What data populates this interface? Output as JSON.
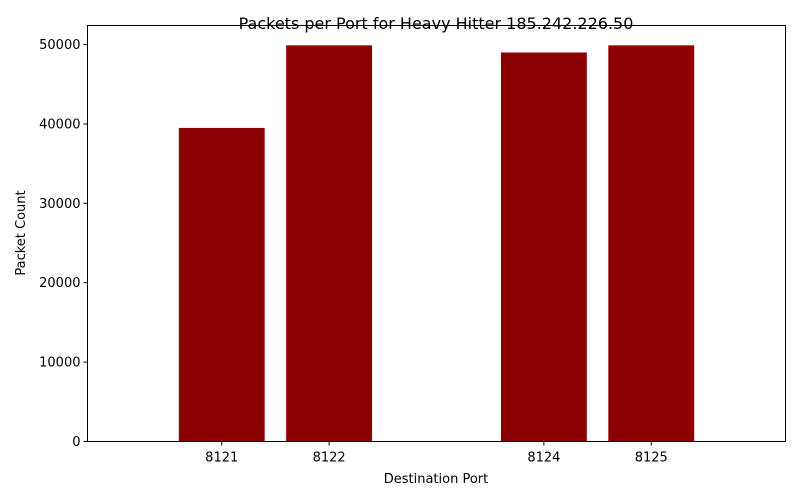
{
  "chart_data": {
    "type": "bar",
    "title": "Packets per Port for Heavy Hitter 185.242.226.50",
    "xlabel": "Destination Port",
    "ylabel": "Packet Count",
    "x": [
      8121,
      8122,
      8124,
      8125
    ],
    "categories": [
      "8121",
      "8122",
      "8124",
      "8125"
    ],
    "values": [
      39500,
      49900,
      49000,
      49900
    ],
    "xlim": [
      8119.75,
      8126.25
    ],
    "ylim": [
      0,
      52400
    ],
    "yticks": [
      0,
      10000,
      20000,
      30000,
      40000,
      50000
    ],
    "ytick_labels": [
      "0",
      "10000",
      "20000",
      "30000",
      "40000",
      "50000"
    ],
    "bar_color": "#8b0000",
    "grid": false,
    "legend": "none"
  }
}
